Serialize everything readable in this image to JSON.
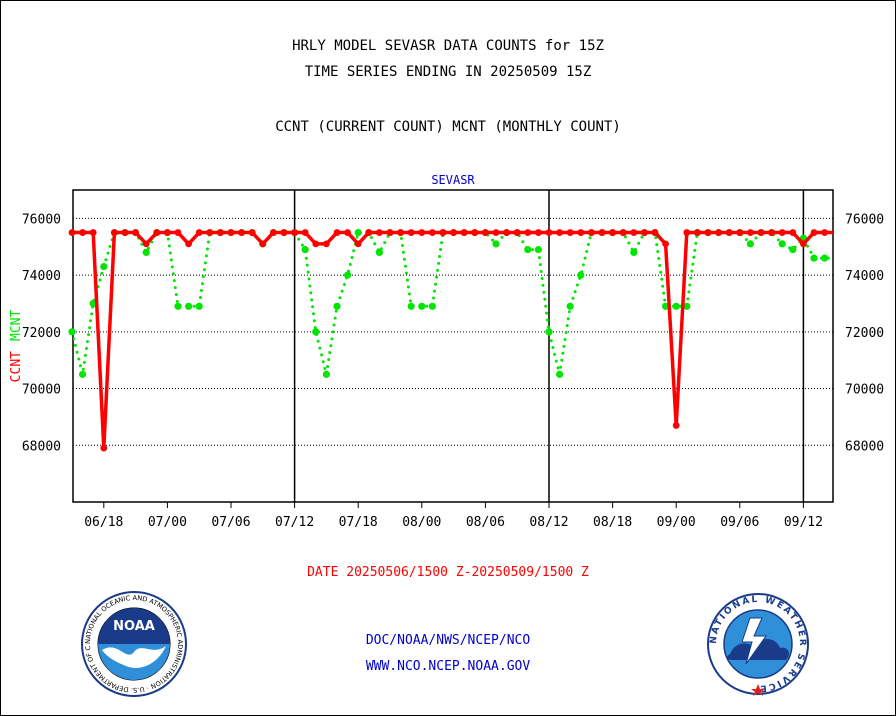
{
  "header": {
    "title_line1": "HRLY MODEL SEVASR DATA COUNTS for 15Z",
    "title_line2": "TIME SERIES ENDING IN 20250509 15Z",
    "subtitle": "CCNT (CURRENT COUNT) MCNT (MONTHLY COUNT)"
  },
  "footer": {
    "date_range": "DATE 20250506/1500 Z-20250509/1500 Z",
    "org_line": "DOC/NOAA/NWS/NCEP/NCO",
    "url_line": "WWW.NCO.NCEP.NOAA.GOV"
  },
  "logos": {
    "noaa_text": "NOAA",
    "noaa_ring": "NATIONAL OCEANIC AND ATMOSPHERIC ADMINISTRATION · U.S. DEPARTMENT OF COMMERCE ·",
    "nws_ring": "NATIONAL WEATHER SERVICE"
  },
  "chart_data": {
    "type": "line",
    "title": "SEVASR",
    "ylabel_parts": [
      "CCNT",
      "MCNT"
    ],
    "ylim": [
      66000,
      77000
    ],
    "yticks": [
      68000,
      70000,
      72000,
      74000,
      76000
    ],
    "ytick_labels": [
      "68000",
      "70000",
      "72000",
      "74000",
      "76000"
    ],
    "xtick_labels": [
      "06/18",
      "07/00",
      "07/06",
      "07/12",
      "07/18",
      "08/00",
      "08/06",
      "08/12",
      "08/18",
      "09/00",
      "09/06",
      "09/12"
    ],
    "day_boundaries": [
      "07/12",
      "08/12",
      "09/12"
    ],
    "grid": true,
    "colors": {
      "CCNT": "#ff0000",
      "MCNT": "#00e600",
      "title": "#0000cc",
      "date": "#ff0000",
      "footer": "#0000cc"
    },
    "series": [
      {
        "name": "CCNT",
        "style": "solid",
        "x": [
          "06/15",
          "06/16",
          "06/17",
          "06/18",
          "06/19",
          "06/20",
          "06/21",
          "06/22",
          "06/23",
          "07/00",
          "07/01",
          "07/02",
          "07/03",
          "07/04",
          "07/05",
          "07/06",
          "07/07",
          "07/08",
          "07/09",
          "07/10",
          "07/11",
          "07/12",
          "07/13",
          "07/14",
          "07/15",
          "07/16",
          "07/17",
          "07/18",
          "07/19",
          "07/20",
          "07/21",
          "07/22",
          "07/23",
          "08/00",
          "08/01",
          "08/02",
          "08/03",
          "08/04",
          "08/05",
          "08/06",
          "08/07",
          "08/08",
          "08/09",
          "08/10",
          "08/11",
          "08/12",
          "08/13",
          "08/14",
          "08/15",
          "08/16",
          "08/17",
          "08/18",
          "08/19",
          "08/20",
          "08/21",
          "08/22",
          "08/23",
          "09/00",
          "09/01",
          "09/02",
          "09/03",
          "09/04",
          "09/05",
          "09/06",
          "09/07",
          "09/08",
          "09/09",
          "09/10",
          "09/11",
          "09/12",
          "09/13",
          "09/14",
          "09/15"
        ],
        "values": [
          75500,
          75500,
          75500,
          67900,
          75500,
          75500,
          75500,
          75100,
          75500,
          75500,
          75500,
          75100,
          75500,
          75500,
          75500,
          75500,
          75500,
          75500,
          75100,
          75500,
          75500,
          75500,
          75500,
          75100,
          75100,
          75500,
          75500,
          75100,
          75500,
          75500,
          75500,
          75500,
          75500,
          75500,
          75500,
          75500,
          75500,
          75500,
          75500,
          75500,
          75500,
          75500,
          75500,
          75500,
          75500,
          75500,
          75500,
          75500,
          75500,
          75500,
          75500,
          75500,
          75500,
          75500,
          75500,
          75500,
          75100,
          68700,
          75500,
          75500,
          75500,
          75500,
          75500,
          75500,
          75500,
          75500,
          75500,
          75500,
          75500,
          75100,
          75500,
          75500,
          75500
        ]
      },
      {
        "name": "MCNT",
        "style": "dotted",
        "x": [
          "06/15",
          "06/16",
          "06/17",
          "06/18",
          "06/19",
          "06/20",
          "06/21",
          "06/22",
          "06/23",
          "07/00",
          "07/01",
          "07/02",
          "07/03",
          "07/04",
          "07/05",
          "07/06",
          "07/07",
          "07/08",
          "07/09",
          "07/10",
          "07/11",
          "07/12",
          "07/13",
          "07/14",
          "07/15",
          "07/16",
          "07/17",
          "07/18",
          "07/19",
          "07/20",
          "07/21",
          "07/22",
          "07/23",
          "08/00",
          "08/01",
          "08/02",
          "08/03",
          "08/04",
          "08/05",
          "08/06",
          "08/07",
          "08/08",
          "08/09",
          "08/10",
          "08/11",
          "08/12",
          "08/13",
          "08/14",
          "08/15",
          "08/16",
          "08/17",
          "08/18",
          "08/19",
          "08/20",
          "08/21",
          "08/22",
          "08/23",
          "09/00",
          "09/01",
          "09/02",
          "09/03",
          "09/04",
          "09/05",
          "09/06",
          "09/07",
          "09/08",
          "09/09",
          "09/10",
          "09/11",
          "09/12",
          "09/13",
          "09/14",
          "09/15"
        ],
        "values": [
          72000,
          70500,
          73000,
          74300,
          75500,
          75500,
          75500,
          74800,
          75500,
          75500,
          72900,
          72900,
          72900,
          75500,
          75500,
          75500,
          75500,
          75500,
          75100,
          75500,
          75500,
          75500,
          74900,
          72000,
          70500,
          72900,
          74000,
          75500,
          75500,
          74800,
          75500,
          75500,
          72900,
          72900,
          72900,
          75500,
          75500,
          75500,
          75500,
          75500,
          75100,
          75500,
          75500,
          74900,
          74900,
          72000,
          70500,
          72900,
          74000,
          75500,
          75500,
          75500,
          75500,
          74800,
          75500,
          75500,
          72900,
          72900,
          72900,
          75500,
          75500,
          75500,
          75500,
          75500,
          75100,
          75500,
          75500,
          75100,
          74900,
          75300,
          74600,
          74600,
          74600
        ]
      }
    ]
  }
}
